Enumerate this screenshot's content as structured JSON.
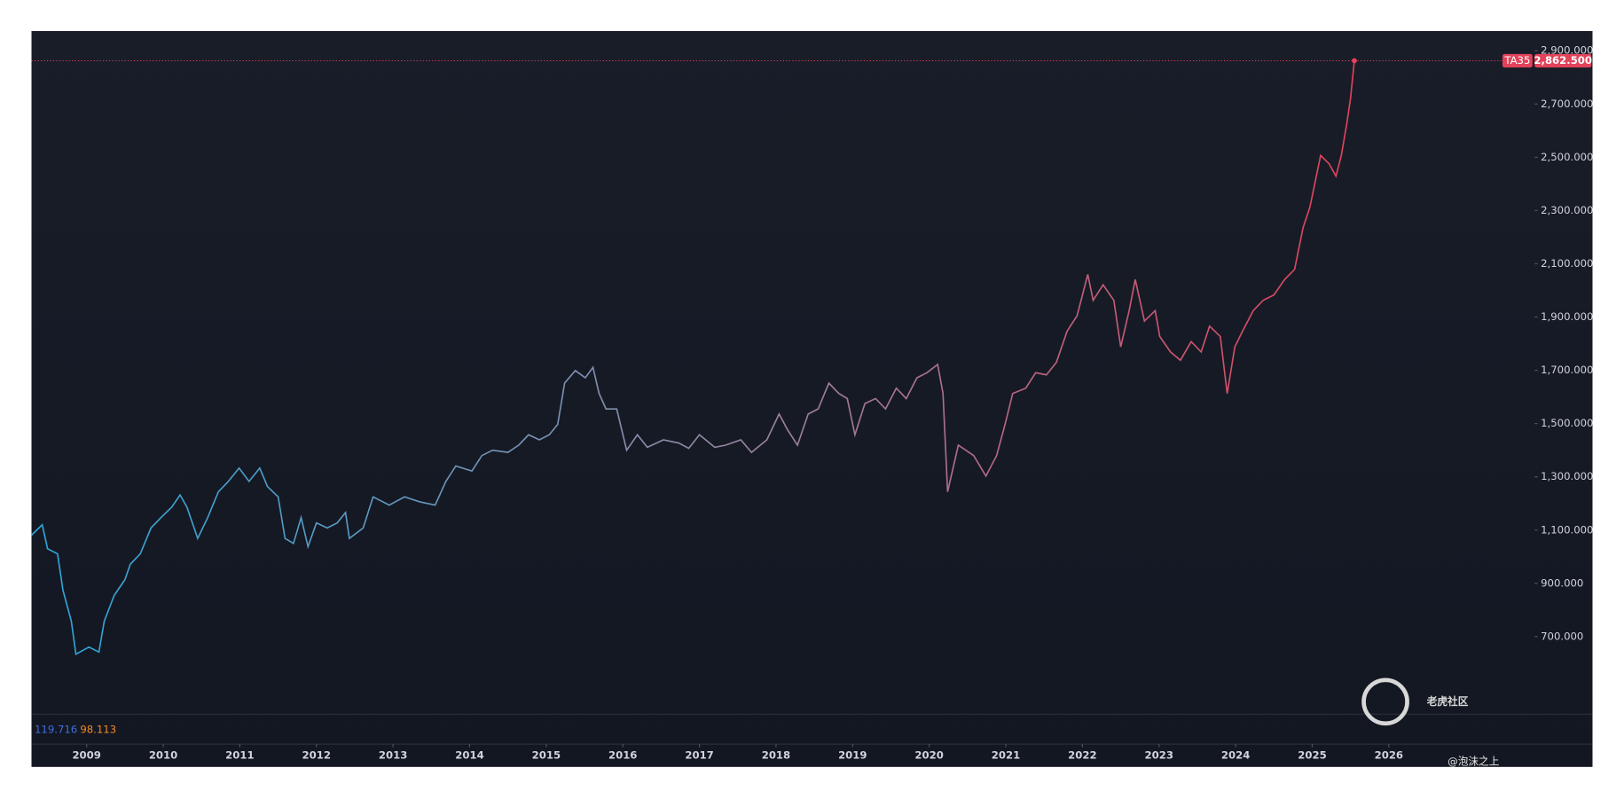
{
  "chart_data": {
    "type": "line",
    "series": [
      {
        "name": "TA35",
        "colors": [
          "#2ba6d9",
          "#8e8aa6",
          "#e2425a"
        ],
        "x": [
          2008.28,
          2008.42,
          2008.49,
          2008.62,
          2008.69,
          2008.8,
          2008.86,
          2009.03,
          2009.16,
          2009.23,
          2009.36,
          2009.5,
          2009.57,
          2009.7,
          2009.84,
          2009.97,
          2010.11,
          2010.22,
          2010.31,
          2010.45,
          2010.58,
          2010.72,
          2010.85,
          2010.99,
          2011.12,
          2011.26,
          2011.36,
          2011.5,
          2011.59,
          2011.7,
          2011.8,
          2011.89,
          2012.0,
          2012.14,
          2012.27,
          2012.38,
          2012.43,
          2012.61,
          2012.74,
          2012.95,
          2013.15,
          2013.35,
          2013.55,
          2013.69,
          2013.82,
          2014.03,
          2014.16,
          2014.3,
          2014.5,
          2014.64,
          2014.77,
          2014.91,
          2015.04,
          2015.15,
          2015.24,
          2015.38,
          2015.51,
          2015.61,
          2015.69,
          2015.78,
          2015.92,
          2016.05,
          2016.19,
          2016.32,
          2016.53,
          2016.73,
          2016.86,
          2017.0,
          2017.2,
          2017.34,
          2017.54,
          2017.68,
          2017.88,
          2018.04,
          2018.15,
          2018.28,
          2018.42,
          2018.55,
          2018.69,
          2018.82,
          2018.93,
          2019.03,
          2019.16,
          2019.3,
          2019.43,
          2019.57,
          2019.7,
          2019.84,
          2019.97,
          2020.11,
          2020.18,
          2020.24,
          2020.38,
          2020.58,
          2020.74,
          2020.88,
          2020.99,
          2021.09,
          2021.26,
          2021.39,
          2021.53,
          2021.66,
          2021.8,
          2021.93,
          2022.07,
          2022.14,
          2022.27,
          2022.41,
          2022.5,
          2022.61,
          2022.69,
          2022.81,
          2022.95,
          2023.01,
          2023.15,
          2023.28,
          2023.42,
          2023.55,
          2023.66,
          2023.8,
          2023.89,
          2023.99,
          2024.09,
          2024.23,
          2024.36,
          2024.5,
          2024.64,
          2024.77,
          2024.88,
          2024.97,
          2025.11,
          2025.22,
          2025.31,
          2025.38,
          2025.45,
          2025.5,
          2025.55
        ],
        "values": [
          1081,
          1120,
          1030,
          1011,
          875,
          758,
          634,
          661,
          642,
          758,
          855,
          914,
          972,
          1011,
          1108,
          1147,
          1186,
          1232,
          1186,
          1069,
          1147,
          1244,
          1283,
          1333,
          1283,
          1333,
          1264,
          1225,
          1069,
          1050,
          1147,
          1038,
          1127,
          1108,
          1127,
          1166,
          1069,
          1108,
          1225,
          1194,
          1225,
          1206,
          1194,
          1283,
          1341,
          1322,
          1380,
          1400,
          1392,
          1419,
          1458,
          1439,
          1458,
          1497,
          1652,
          1699,
          1672,
          1711,
          1613,
          1555,
          1555,
          1400,
          1458,
          1411,
          1439,
          1427,
          1407,
          1458,
          1411,
          1419,
          1439,
          1392,
          1439,
          1536,
          1477,
          1419,
          1536,
          1555,
          1652,
          1613,
          1594,
          1458,
          1575,
          1594,
          1555,
          1633,
          1594,
          1672,
          1691,
          1722,
          1613,
          1244,
          1419,
          1380,
          1303,
          1380,
          1497,
          1613,
          1633,
          1691,
          1683,
          1730,
          1847,
          1905,
          2060,
          1963,
          2021,
          1963,
          1788,
          1924,
          2041,
          1885,
          1924,
          1827,
          1769,
          1738,
          1808,
          1769,
          1866,
          1827,
          1613,
          1788,
          1847,
          1924,
          1963,
          1983,
          2041,
          2079,
          2235,
          2313,
          2507,
          2476,
          2429,
          2507,
          2624,
          2721,
          2862.5
        ]
      }
    ],
    "price_label": "2,862.500",
    "xlim": [
      2008.28,
      2027.47
    ],
    "xticks": [
      2009,
      2010,
      2011,
      2012,
      2013,
      2014,
      2015,
      2016,
      2017,
      2018,
      2019,
      2020,
      2021,
      2022,
      2023,
      2024,
      2025,
      2026
    ],
    "ylim": [
      409,
      2974
    ],
    "yticks": [
      {
        "value": 700,
        "label": "700.000"
      },
      {
        "value": 900,
        "label": "900.000"
      },
      {
        "value": 1100,
        "label": "1,100.000"
      },
      {
        "value": 1300,
        "label": "1,300.000"
      },
      {
        "value": 1500,
        "label": "1,500.000"
      },
      {
        "value": 1700,
        "label": "1,700.000"
      },
      {
        "value": 1900,
        "label": "1,900.000"
      },
      {
        "value": 2100,
        "label": "2,100.000"
      },
      {
        "value": 2300,
        "label": "2,300.000"
      },
      {
        "value": 2500,
        "label": "2,500.000"
      },
      {
        "value": 2700,
        "label": "2,700.000"
      },
      {
        "value": 2900,
        "label": "2,900.000"
      }
    ],
    "indicators": [
      119.716,
      98.113
    ],
    "watermark": [
      "老虎社区",
      "@泡沫之上"
    ]
  }
}
